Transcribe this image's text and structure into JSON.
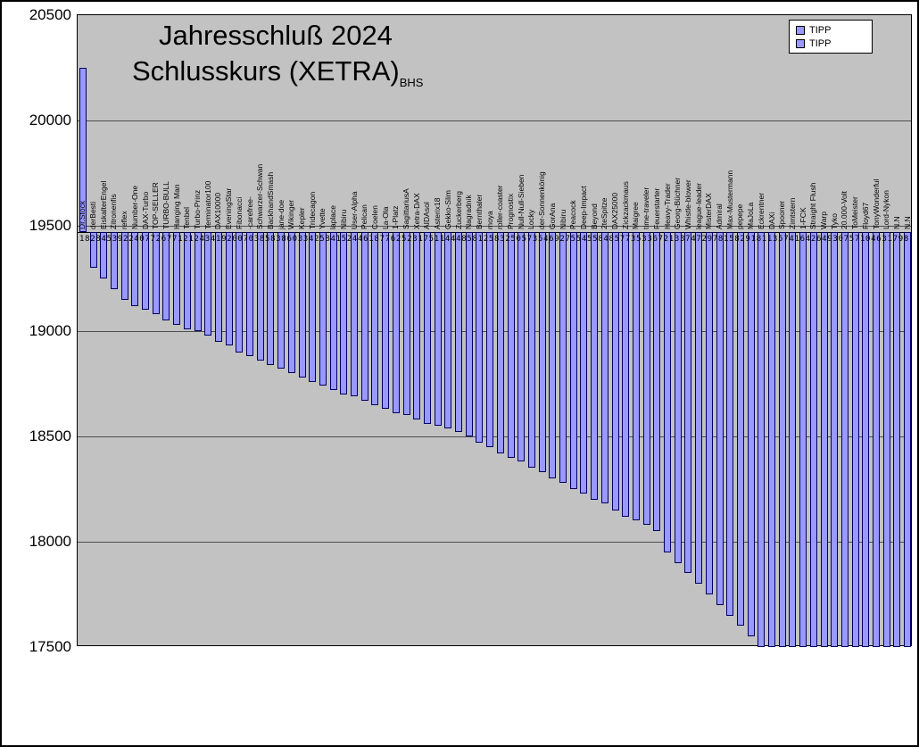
{
  "chart_data": {
    "type": "bar",
    "title_line1": "Jahresschluß 2024",
    "title_line2": "Schlusskurs (XETRA)",
    "title_suffix": "BHS",
    "ylabel": "",
    "xlabel": "",
    "ylim": [
      17500,
      20500
    ],
    "ytick_step": 500,
    "yticks": [
      20500,
      20000,
      19500,
      19000,
      18500,
      18000,
      17500
    ],
    "axis_cross": 19470,
    "grid": true,
    "plot_bg": "#C2C2C2",
    "bar_fill": "#9999FF",
    "bar_border": "#000060",
    "legend": {
      "position": "top-right",
      "entries": [
        {
          "label": "TIPP",
          "color": "#9999FF"
        },
        {
          "label": "TIPP",
          "color": "#9999FF"
        }
      ]
    },
    "categories": [
      "Dr.Stock",
      "derBesti",
      "EiskalterEngel",
      "Zitronenfis",
      "reflex",
      "Number-One",
      "DAX-Turbo",
      "TOP-SELLER",
      "TURBO-BULL",
      "Hanging Man",
      "Tenbel",
      "Turbo-Prinz",
      "Terminator100",
      "DAX10000",
      "EveningStar",
      "Fibonacci",
      "-carefree-",
      "Schwarzer-Schwan",
      "BackhandSmash",
      "jane-doe",
      "Wikinger",
      "Kepler",
      "Tridecagon",
      "Yvette",
      "laplace",
      "Nibiru",
      "User-Alpha",
      "Pelican",
      "Coelen",
      "La-Ola",
      "1-Platz",
      "SagittariusA",
      "Xetra-DAX",
      "AIDAsol",
      "Asterix18",
      "Gekko-Slim",
      "Zuckerberg",
      "Nagradnik",
      "Bernthaler",
      "moya",
      "roller-coaster",
      "Prognostix",
      "Null-Null-Sieben",
      "Locky",
      "der-Sonnenkönig",
      "GorAna",
      "Nibiru",
      "Peacock",
      "Deep-Impact",
      "Beyond",
      "2teSpitze",
      "DAX25000",
      "Zickzackmaus",
      "Maigree",
      "time-traveler",
      "Feuerstarter",
      "Heavy-Trader",
      "Georg-Büchner",
      "Whistle-blower",
      "league-leader",
      "MisterDAX",
      "Admiral",
      "Max-Mustermann",
      "pepepe",
      "MaJoLa",
      "Eckrentner",
      "DAXi",
      "Spooner",
      "Zimtstern",
      "1-FCK",
      "Straight Flush",
      "Warp",
      "Tyko",
      "20.000-Volt",
      "ToMeister",
      "Floyd67",
      "TonyWonderful",
      "Lord-Nykon",
      "N.N",
      "N.N"
    ],
    "values": [
      20250,
      19300,
      19250,
      19200,
      19150,
      19120,
      19100,
      19080,
      19050,
      19030,
      19010,
      19000,
      18980,
      18950,
      18930,
      18900,
      18880,
      18860,
      18840,
      18820,
      18800,
      18780,
      18760,
      18740,
      18720,
      18700,
      18690,
      18670,
      18650,
      18630,
      18610,
      18600,
      18580,
      18560,
      18550,
      18540,
      18520,
      18500,
      18470,
      18450,
      18420,
      18400,
      18380,
      18350,
      18330,
      18300,
      18280,
      18250,
      18230,
      18200,
      18180,
      18150,
      18120,
      18100,
      18080,
      18050,
      17950,
      17900,
      17850,
      17800,
      17750,
      17700,
      17650,
      17600,
      17550,
      17500,
      17500,
      17500,
      17500,
      17500,
      17500,
      17500,
      17500,
      17500,
      17500,
      17500,
      17500,
      17500,
      17500,
      17500
    ],
    "value_label_row": "18284539224077267712124341920070385838603342584152446187762523175114448581258325057354692755455848577353367213374729781582918113574164264930757104631798"
  }
}
